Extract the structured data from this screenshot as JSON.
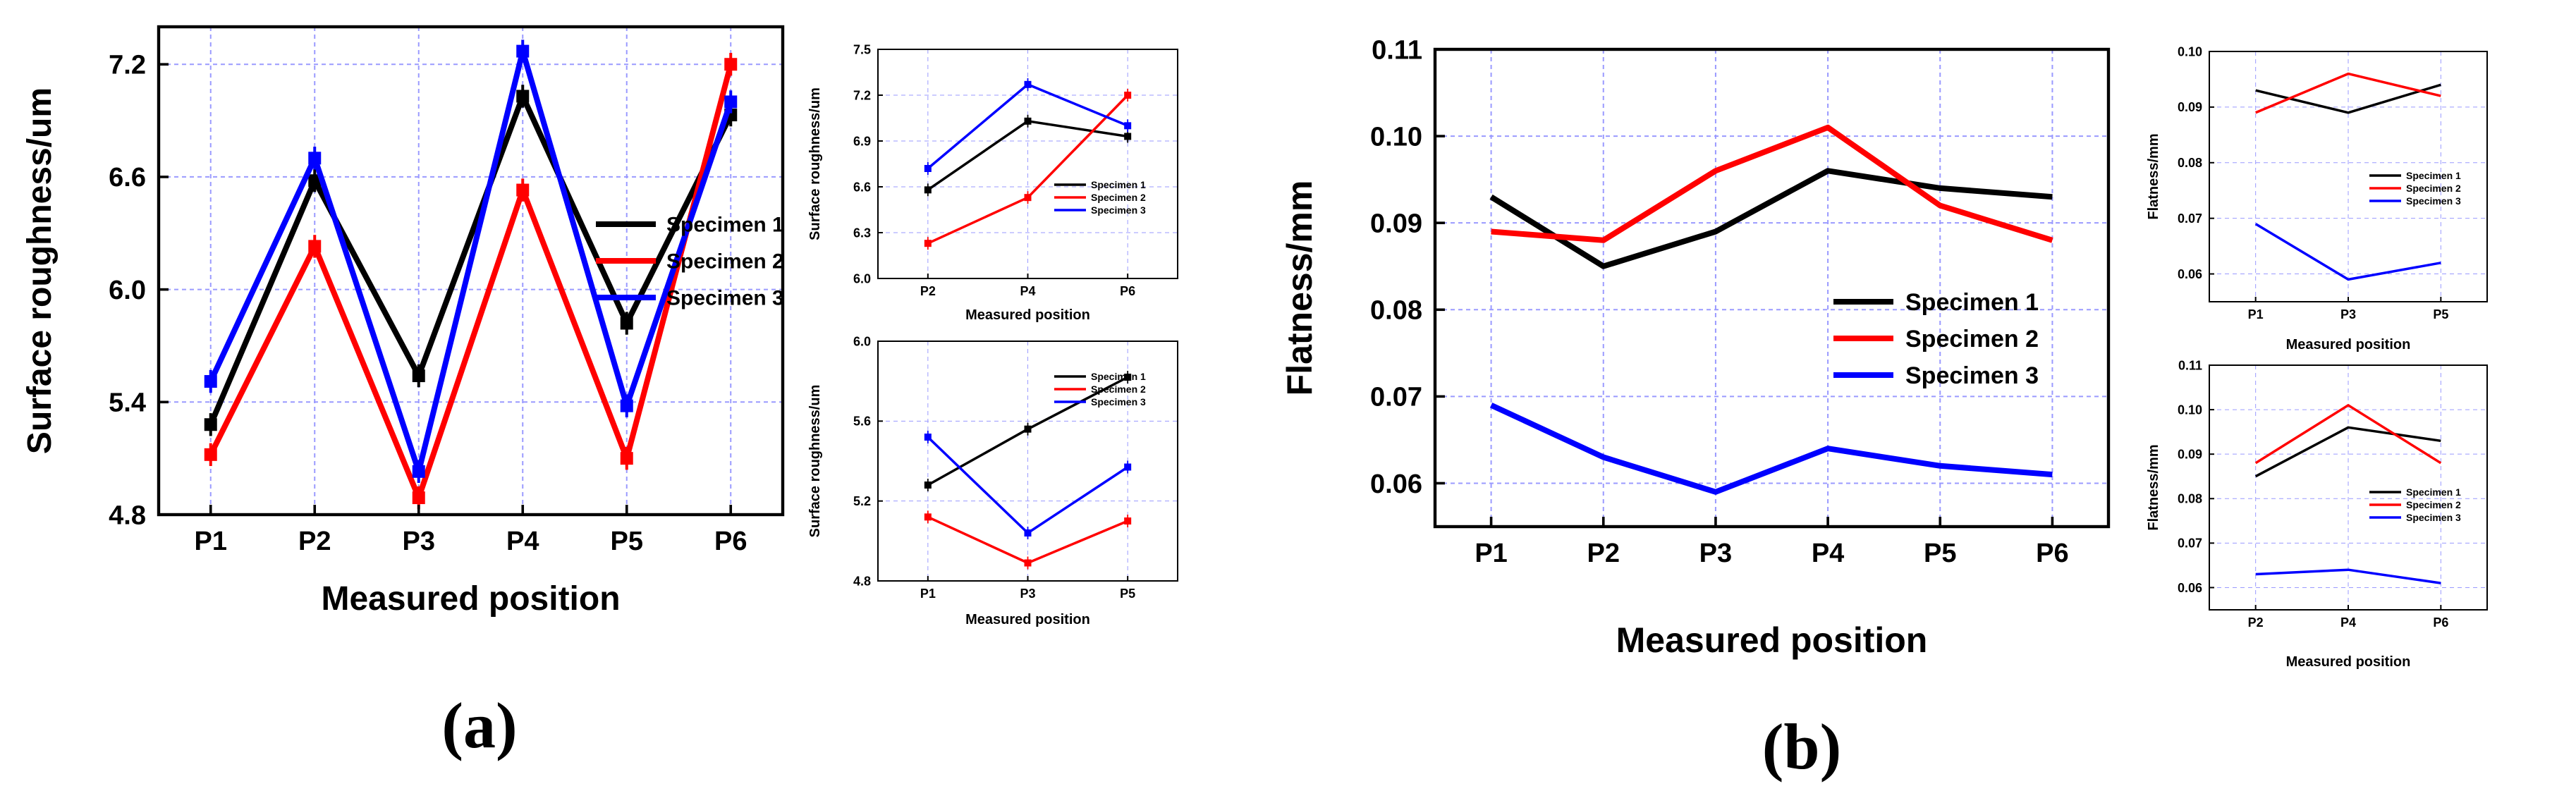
{
  "figure": {
    "panel_a_label": "(a)",
    "panel_b_label": "(b)"
  },
  "colors": {
    "specimen1": "#000000",
    "specimen2": "#ff0000",
    "specimen3": "#0000ff",
    "grid": "#9a9aff"
  },
  "chart_data": [
    {
      "id": "a_main",
      "type": "line",
      "title": "",
      "xlabel": "Measured position",
      "ylabel": "Surface roughness/um",
      "categories": [
        "P1",
        "P2",
        "P3",
        "P4",
        "P5",
        "P6"
      ],
      "ylim": [
        4.8,
        7.4
      ],
      "yticks": [
        4.8,
        5.4,
        6.0,
        6.6,
        7.2
      ],
      "grid": true,
      "legend": "right-middle",
      "series": [
        {
          "name": "Specimen 1",
          "color": "#000000",
          "values": [
            5.28,
            6.58,
            5.54,
            7.03,
            5.82,
            6.93
          ]
        },
        {
          "name": "Specimen 2",
          "color": "#ff0000",
          "values": [
            5.12,
            6.23,
            4.89,
            6.53,
            5.1,
            7.2
          ]
        },
        {
          "name": "Specimen 3",
          "color": "#0000ff",
          "values": [
            5.51,
            6.7,
            5.03,
            7.27,
            5.38,
            7.0
          ]
        }
      ]
    },
    {
      "id": "a_inset_top",
      "type": "line",
      "xlabel": "Measured position",
      "ylabel": "Surface roughness/um",
      "categories": [
        "P2",
        "P4",
        "P6"
      ],
      "ylim": [
        6.0,
        7.5
      ],
      "yticks": [
        6.0,
        6.3,
        6.6,
        6.9,
        7.2,
        7.5
      ],
      "grid": true,
      "legend": "right-middle",
      "series": [
        {
          "name": "Specimen 1",
          "color": "#000000",
          "values": [
            6.58,
            7.03,
            6.93
          ]
        },
        {
          "name": "Specimen 2",
          "color": "#ff0000",
          "values": [
            6.23,
            6.53,
            7.2
          ]
        },
        {
          "name": "Specimen 3",
          "color": "#0000ff",
          "values": [
            6.72,
            7.27,
            7.0
          ]
        }
      ]
    },
    {
      "id": "a_inset_bottom",
      "type": "line",
      "xlabel": "Measured position",
      "ylabel": "Surface roughness/um",
      "categories": [
        "P1",
        "P3",
        "P5"
      ],
      "ylim": [
        4.8,
        6.0
      ],
      "yticks": [
        4.8,
        5.2,
        5.6,
        6.0
      ],
      "grid": true,
      "legend": "top-right",
      "series": [
        {
          "name": "Specimen 1",
          "color": "#000000",
          "values": [
            5.28,
            5.56,
            5.82
          ]
        },
        {
          "name": "Specimen 2",
          "color": "#ff0000",
          "values": [
            5.12,
            4.89,
            5.1
          ]
        },
        {
          "name": "Specimen 3",
          "color": "#0000ff",
          "values": [
            5.52,
            5.04,
            5.37
          ]
        }
      ]
    },
    {
      "id": "b_main",
      "type": "line",
      "xlabel": "Measured position",
      "ylabel": "Flatness/mm",
      "categories": [
        "P1",
        "P2",
        "P3",
        "P4",
        "P5",
        "P6"
      ],
      "ylim": [
        0.055,
        0.11
      ],
      "yticks": [
        0.06,
        0.07,
        0.08,
        0.09,
        0.1,
        0.11
      ],
      "ytick_labels": [
        "0.06",
        "0.07",
        "0.08",
        "0.09",
        "0.10",
        "0.11"
      ],
      "grid": true,
      "legend": "center-right",
      "series": [
        {
          "name": "Specimen 1",
          "color": "#000000",
          "values": [
            0.093,
            0.085,
            0.089,
            0.096,
            0.094,
            0.093
          ]
        },
        {
          "name": "Specimen 2",
          "color": "#ff0000",
          "values": [
            0.089,
            0.088,
            0.096,
            0.101,
            0.092,
            0.088
          ]
        },
        {
          "name": "Specimen 3",
          "color": "#0000ff",
          "values": [
            0.069,
            0.063,
            0.059,
            0.064,
            0.062,
            0.061
          ]
        }
      ]
    },
    {
      "id": "b_inset_top",
      "type": "line",
      "xlabel": "Measured position",
      "ylabel": "Flatness/mm",
      "categories": [
        "P1",
        "P3",
        "P5"
      ],
      "ylim": [
        0.055,
        0.1
      ],
      "yticks": [
        0.06,
        0.07,
        0.08,
        0.09,
        0.1
      ],
      "ytick_labels": [
        "0.06",
        "0.07",
        "0.08",
        "0.09",
        "0.10"
      ],
      "grid": true,
      "legend": "right-middle",
      "series": [
        {
          "name": "Specimen 1",
          "color": "#000000",
          "values": [
            0.093,
            0.089,
            0.094
          ]
        },
        {
          "name": "Specimen 2",
          "color": "#ff0000",
          "values": [
            0.089,
            0.096,
            0.092
          ]
        },
        {
          "name": "Specimen 3",
          "color": "#0000ff",
          "values": [
            0.069,
            0.059,
            0.062
          ]
        }
      ]
    },
    {
      "id": "b_inset_bottom",
      "type": "line",
      "xlabel": "Measured position",
      "ylabel": "Flatness/mm",
      "categories": [
        "P2",
        "P4",
        "P6"
      ],
      "ylim": [
        0.055,
        0.11
      ],
      "yticks": [
        0.06,
        0.07,
        0.08,
        0.09,
        0.1,
        0.11
      ],
      "ytick_labels": [
        "0.06",
        "0.07",
        "0.08",
        "0.09",
        "0.10",
        "0.11"
      ],
      "grid": true,
      "legend": "right-middle",
      "series": [
        {
          "name": "Specimen 1",
          "color": "#000000",
          "values": [
            0.085,
            0.096,
            0.093
          ]
        },
        {
          "name": "Specimen 2",
          "color": "#ff0000",
          "values": [
            0.088,
            0.101,
            0.088
          ]
        },
        {
          "name": "Specimen 3",
          "color": "#0000ff",
          "values": [
            0.063,
            0.064,
            0.061
          ]
        }
      ]
    }
  ]
}
